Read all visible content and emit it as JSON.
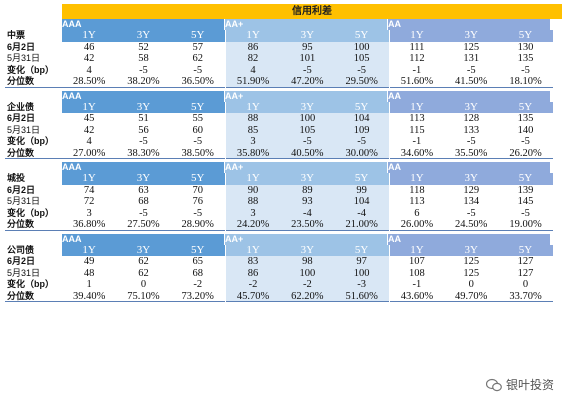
{
  "title": "信用利差",
  "tenors": [
    "1Y",
    "3Y",
    "5Y"
  ],
  "ratings": [
    "AAA",
    "AA+",
    "AA"
  ],
  "row_labels": {
    "today": "6月2日",
    "prev": "5月31日",
    "change": "变化（bp）",
    "pct": "分位数"
  },
  "sections": [
    {
      "name": "中票",
      "today": [
        [
          46,
          52,
          57
        ],
        [
          86,
          95,
          100
        ],
        [
          111,
          125,
          130
        ]
      ],
      "prev": [
        [
          42,
          58,
          62
        ],
        [
          82,
          101,
          105
        ],
        [
          112,
          131,
          135
        ]
      ],
      "change": [
        [
          "4",
          "-5",
          "-5"
        ],
        [
          "4",
          "-5",
          "-5"
        ],
        [
          "-1",
          "-5",
          "-5"
        ]
      ],
      "pct": [
        [
          "28.50%",
          "38.20%",
          "36.50%"
        ],
        [
          "51.90%",
          "47.20%",
          "29.50%"
        ],
        [
          "51.60%",
          "41.50%",
          "18.10%"
        ]
      ]
    },
    {
      "name": "企业债",
      "today": [
        [
          45,
          51,
          55
        ],
        [
          88,
          100,
          104
        ],
        [
          113,
          128,
          135
        ]
      ],
      "prev": [
        [
          42,
          56,
          60
        ],
        [
          85,
          105,
          109
        ],
        [
          115,
          133,
          140
        ]
      ],
      "change": [
        [
          "4",
          "-5",
          "-5"
        ],
        [
          "3",
          "-5",
          "-5"
        ],
        [
          "-1",
          "-5",
          "-5"
        ]
      ],
      "pct": [
        [
          "27.00%",
          "38.30%",
          "38.50%"
        ],
        [
          "35.80%",
          "40.50%",
          "30.00%"
        ],
        [
          "34.60%",
          "35.50%",
          "26.20%"
        ]
      ]
    },
    {
      "name": "城投",
      "today": [
        [
          74,
          63,
          70
        ],
        [
          90,
          89,
          99
        ],
        [
          118,
          129,
          139
        ]
      ],
      "prev": [
        [
          72,
          68,
          76
        ],
        [
          88,
          93,
          104
        ],
        [
          113,
          134,
          145
        ]
      ],
      "change": [
        [
          "3",
          "-5",
          "-5"
        ],
        [
          "3",
          "-4",
          "-4"
        ],
        [
          "6",
          "-5",
          "-5"
        ]
      ],
      "pct": [
        [
          "36.80%",
          "27.50%",
          "28.90%"
        ],
        [
          "24.20%",
          "23.50%",
          "21.00%"
        ],
        [
          "26.00%",
          "24.50%",
          "19.00%"
        ]
      ]
    },
    {
      "name": "公司债",
      "today": [
        [
          49,
          62,
          65
        ],
        [
          83,
          98,
          97
        ],
        [
          107,
          125,
          127
        ]
      ],
      "prev": [
        [
          48,
          62,
          68
        ],
        [
          86,
          100,
          100
        ],
        [
          108,
          125,
          127
        ]
      ],
      "change": [
        [
          "1",
          "0",
          "-2"
        ],
        [
          "-2",
          "-2",
          "-3"
        ],
        [
          "-1",
          "0",
          "0"
        ]
      ],
      "pct": [
        [
          "39.40%",
          "75.10%",
          "73.20%"
        ],
        [
          "45.70%",
          "62.20%",
          "51.60%"
        ],
        [
          "43.60%",
          "49.70%",
          "33.70%"
        ]
      ]
    }
  ],
  "watermark": "银叶投资"
}
